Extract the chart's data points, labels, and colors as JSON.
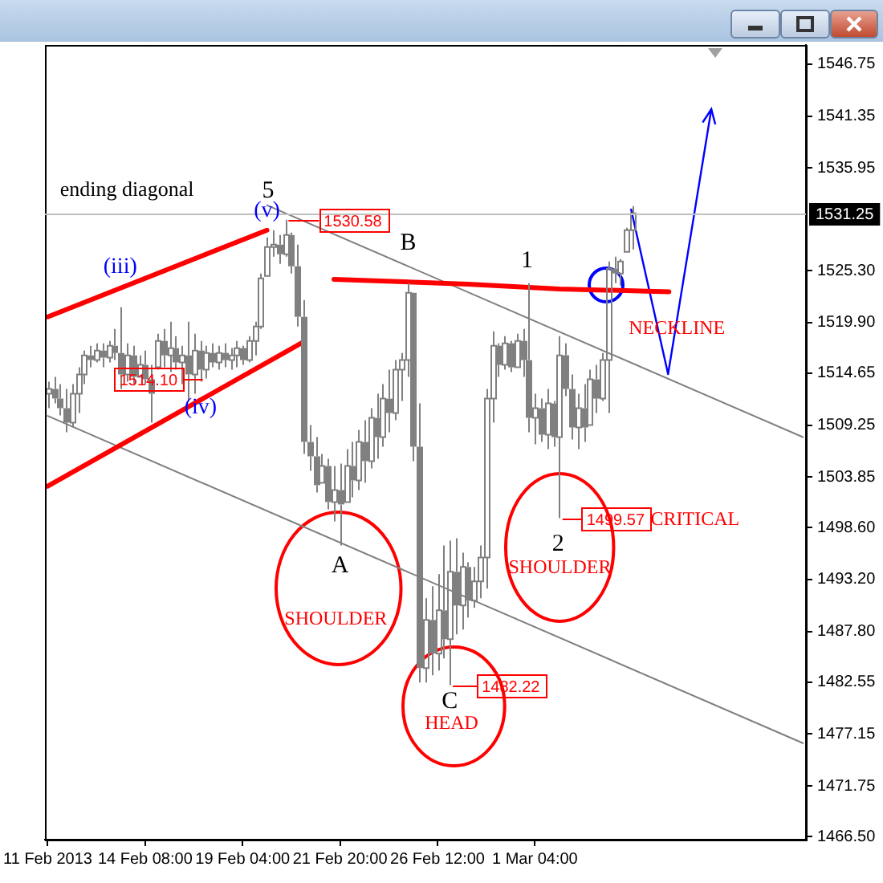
{
  "chart_data": {
    "type": "candlestick",
    "color": "#808080",
    "categories": [
      "11 Feb 2013",
      null,
      null,
      null,
      null,
      null,
      null,
      null,
      null,
      null,
      null,
      null,
      null,
      null,
      null,
      null,
      "14 Feb 08:00",
      null,
      null,
      null,
      null,
      null,
      null,
      null,
      null,
      null,
      null,
      null,
      null,
      null,
      null,
      null,
      "19 Feb 04:00",
      null,
      null,
      null,
      null,
      null,
      null,
      null,
      null,
      null,
      null,
      null,
      null,
      null,
      null,
      null,
      "21 Feb 20:00",
      null,
      null,
      null,
      null,
      null,
      null,
      null,
      null,
      null,
      null,
      null,
      null,
      null,
      null,
      null,
      "26 Feb 12:00",
      null,
      null,
      null,
      null,
      null,
      null,
      null,
      null,
      null,
      null,
      null,
      null,
      null,
      null,
      null,
      "1 Mar 04:00",
      null,
      null,
      null,
      null,
      null,
      null,
      null,
      null,
      null,
      null,
      null,
      null,
      null,
      null,
      null,
      null,
      null,
      null,
      null,
      null,
      null,
      null,
      null,
      null,
      null,
      null,
      null,
      null,
      null,
      null,
      null,
      null,
      null,
      null,
      null,
      null,
      null,
      null,
      null,
      null,
      null,
      null,
      null,
      null
    ],
    "ohlc": [
      [
        1512.5,
        1513.75,
        1511.0,
        1513.0
      ],
      [
        1513.0,
        1514.25,
        1511.5,
        1512.0
      ],
      [
        1512.0,
        1513.5,
        1510.25,
        1511.0
      ],
      [
        1511.0,
        1513.0,
        1508.5,
        1509.5
      ],
      [
        1509.5,
        1513.5,
        1509.0,
        1512.5
      ],
      [
        1512.5,
        1515.25,
        1510.5,
        1514.5
      ],
      [
        1514.5,
        1517.0,
        1513.5,
        1516.5
      ],
      [
        1516.5,
        1517.5,
        1515.25,
        1516.0
      ],
      [
        1516.0,
        1517.75,
        1515.75,
        1517.0
      ],
      [
        1517.0,
        1517.75,
        1515.25,
        1516.25
      ],
      [
        1516.25,
        1518.0,
        1515.75,
        1517.5
      ],
      [
        1517.5,
        1519.25,
        1516.0,
        1516.75
      ],
      [
        1516.75,
        1521.5,
        1513.0,
        1514.5
      ],
      [
        1514.5,
        1517.75,
        1513.75,
        1516.5
      ],
      [
        1516.5,
        1517.5,
        1513.5,
        1514.25
      ],
      [
        1514.25,
        1516.5,
        1514.25,
        1515.5
      ],
      [
        1515.5,
        1517.0,
        1513.5,
        1514.0
      ],
      [
        1514.0,
        1515.5,
        1509.5,
        1512.5
      ],
      [
        1515.25,
        1518.75,
        1515.0,
        1518.0
      ],
      [
        1518.0,
        1519.25,
        1515.25,
        1516.5
      ],
      [
        1516.5,
        1520.0,
        1514.75,
        1517.25
      ],
      [
        1517.25,
        1518.5,
        1515.0,
        1515.75
      ],
      [
        1515.75,
        1517.5,
        1513.5,
        1516.5
      ],
      [
        1516.5,
        1520.0,
        1511.75,
        1514.5
      ],
      [
        1514.5,
        1518.75,
        1512.5,
        1517.0
      ],
      [
        1517.0,
        1518.0,
        1513.75,
        1515.0
      ],
      [
        1515.0,
        1517.5,
        1514.1,
        1516.75
      ],
      [
        1516.75,
        1517.75,
        1515.25,
        1515.75
      ],
      [
        1515.75,
        1517.5,
        1515.0,
        1516.75
      ],
      [
        1516.75,
        1517.75,
        1515.25,
        1516.0
      ],
      [
        1516.0,
        1517.25,
        1515.0,
        1516.5
      ],
      [
        1516.5,
        1518.0,
        1515.25,
        1517.25
      ],
      [
        1517.25,
        1517.5,
        1515.5,
        1516.0
      ],
      [
        1516.0,
        1518.5,
        1515.75,
        1518.0
      ],
      [
        1518.0,
        1520.0,
        1516.5,
        1519.5
      ],
      [
        1519.5,
        1525.0,
        1519.25,
        1524.5
      ],
      [
        1524.75,
        1528.75,
        1524.75,
        1527.75
      ],
      [
        1527.75,
        1529.5,
        1526.75,
        1528.0
      ],
      [
        1528.0,
        1529.0,
        1526.0,
        1527.0
      ],
      [
        1527.0,
        1530.58,
        1526.75,
        1529.0
      ],
      [
        1529.0,
        1529.25,
        1525.0,
        1525.75
      ],
      [
        1525.75,
        1528.0,
        1519.5,
        1520.5
      ],
      [
        1520.5,
        1522.25,
        1506.25,
        1507.5
      ],
      [
        1507.5,
        1509.25,
        1504.5,
        1506.0
      ],
      [
        1506.0,
        1508.0,
        1502.25,
        1503.0
      ],
      [
        1503.25,
        1506.25,
        1503.25,
        1505.0
      ],
      [
        1505.0,
        1505.75,
        1500.5,
        1501.25
      ],
      [
        1501.25,
        1505.0,
        1499.25,
        1502.5
      ],
      [
        1502.5,
        1505.25,
        1496.75,
        1501.0
      ],
      [
        1501.25,
        1506.75,
        1501.25,
        1505.0
      ],
      [
        1505.0,
        1507.5,
        1501.75,
        1503.5
      ],
      [
        1503.5,
        1508.75,
        1502.5,
        1507.5
      ],
      [
        1507.5,
        1509.75,
        1503.25,
        1505.5
      ],
      [
        1505.5,
        1511.0,
        1504.75,
        1510.0
      ],
      [
        1510.0,
        1512.5,
        1505.75,
        1508.0
      ],
      [
        1508.0,
        1513.5,
        1507.0,
        1512.0
      ],
      [
        1512.0,
        1515.0,
        1508.5,
        1510.5
      ],
      [
        1510.5,
        1516.0,
        1509.75,
        1515.0
      ],
      [
        1515.0,
        1516.75,
        1511.75,
        1516.0
      ],
      [
        1516.0,
        1524.0,
        1514.25,
        1523.0
      ],
      [
        1523.0,
        1523.0,
        1505.5,
        1507.0
      ],
      [
        1507.0,
        1511.5,
        1482.5,
        1484.0
      ],
      [
        1484.0,
        1491.25,
        1482.5,
        1489.0
      ],
      [
        1489.0,
        1492.5,
        1483.25,
        1485.5
      ],
      [
        1485.5,
        1493.75,
        1483.75,
        1490.0
      ],
      [
        1490.0,
        1496.75,
        1485.0,
        1487.0
      ],
      [
        1487.0,
        1497.25,
        1482.22,
        1494.0
      ],
      [
        1494.0,
        1497.5,
        1487.5,
        1490.5
      ],
      [
        1490.5,
        1496.0,
        1488.0,
        1494.5
      ],
      [
        1494.5,
        1495.0,
        1489.25,
        1491.0
      ],
      [
        1491.0,
        1494.5,
        1490.25,
        1493.0
      ],
      [
        1493.0,
        1496.75,
        1491.25,
        1495.5
      ],
      [
        1495.5,
        1513.0,
        1492.25,
        1512.0
      ],
      [
        1512.0,
        1519.0,
        1509.5,
        1517.5
      ],
      [
        1517.5,
        1517.75,
        1514.25,
        1515.5
      ],
      [
        1515.5,
        1518.5,
        1515.0,
        1517.75
      ],
      [
        1517.75,
        1518.0,
        1514.75,
        1515.25
      ],
      [
        1515.25,
        1518.75,
        1515.25,
        1518.0
      ],
      [
        1518.0,
        1519.25,
        1514.25,
        1516.0
      ],
      [
        1516.0,
        1524.0,
        1508.5,
        1510.0
      ],
      [
        1510.0,
        1512.5,
        1507.25,
        1511.0
      ],
      [
        1511.0,
        1512.0,
        1507.5,
        1508.25
      ],
      [
        1508.25,
        1513.0,
        1506.75,
        1511.5
      ],
      [
        1511.5,
        1511.75,
        1507.0,
        1508.0
      ],
      [
        1508.0,
        1518.5,
        1499.57,
        1516.5
      ],
      [
        1516.5,
        1517.75,
        1512.25,
        1513.0
      ],
      [
        1513.0,
        1514.5,
        1507.75,
        1509.0
      ],
      [
        1509.0,
        1512.5,
        1506.75,
        1511.0
      ],
      [
        1511.0,
        1513.5,
        1507.5,
        1509.0
      ],
      [
        1509.25,
        1515.0,
        1509.25,
        1514.0
      ],
      [
        1514.0,
        1515.5,
        1510.5,
        1512.0
      ],
      [
        1512.0,
        1516.75,
        1511.75,
        1516.0
      ],
      [
        1516.0,
        1526.25,
        1510.5,
        1525.5
      ],
      [
        1525.5,
        1526.75,
        1524.0,
        1525.0
      ],
      [
        1525.0,
        1526.5,
        1523.75,
        1526.25
      ],
      [
        1527.25,
        1529.75,
        1527.25,
        1529.5
      ],
      [
        1529.5,
        1532.0,
        1527.5,
        1531.25
      ],
      null,
      null,
      null,
      null,
      null,
      null,
      null,
      null,
      null,
      null,
      null,
      null,
      null,
      null,
      null,
      null,
      null,
      null,
      null,
      null,
      null,
      null,
      null,
      null,
      null,
      null,
      null,
      null
    ],
    "series": [
      {
        "type": "line",
        "color": "#ff0000",
        "values": [
          1520.5,
          null,
          null,
          null,
          null,
          null,
          null,
          null,
          null,
          null,
          null,
          null,
          null,
          null,
          null,
          null,
          null,
          null,
          null,
          null,
          null,
          null,
          null,
          null,
          null,
          null,
          null,
          null,
          null,
          null,
          null,
          null,
          null,
          null,
          null,
          null,
          1529.5,
          null,
          null,
          null,
          null,
          null,
          null,
          null,
          null,
          null,
          null,
          null,
          null,
          null,
          null,
          null,
          null,
          null,
          null,
          null,
          null,
          null,
          null,
          null,
          null,
          null,
          null,
          null,
          null,
          null,
          null,
          null,
          null,
          null,
          null,
          null,
          null,
          null,
          null,
          null,
          null,
          null,
          null,
          null,
          null,
          null,
          null,
          null,
          null,
          null,
          null,
          null,
          null,
          null,
          null,
          null,
          null,
          null,
          null,
          null,
          null,
          null,
          null,
          null,
          null,
          null,
          null,
          null,
          null,
          null,
          null,
          null,
          null,
          null,
          null,
          null,
          null,
          null,
          null,
          null,
          null,
          null,
          null,
          null,
          null,
          null,
          null,
          null,
          null
        ]
      },
      {
        "type": "line",
        "color": "#ff0000",
        "values": [
          1502.9,
          null,
          null,
          null,
          null,
          null,
          null,
          null,
          null,
          null,
          null,
          null,
          null,
          null,
          null,
          null,
          null,
          null,
          null,
          null,
          null,
          null,
          null,
          null,
          null,
          null,
          null,
          null,
          null,
          null,
          null,
          null,
          null,
          null,
          null,
          null,
          null,
          null,
          null,
          null,
          null,
          null,
          1517.9,
          null,
          null,
          null,
          null,
          null,
          null,
          null,
          null,
          null,
          null,
          null,
          null,
          null,
          null,
          null,
          null,
          null,
          null,
          null,
          null,
          null,
          null,
          null,
          null,
          null,
          null,
          null,
          null,
          null,
          null,
          null,
          null,
          null,
          null,
          null,
          null,
          null,
          null,
          null,
          null,
          null,
          null,
          null,
          null,
          null,
          null,
          null,
          null,
          null,
          null,
          null,
          null,
          null,
          null,
          null,
          null,
          null,
          null,
          null,
          null,
          null,
          null,
          null,
          null,
          null,
          null,
          null,
          null,
          null,
          null,
          null,
          null,
          null,
          null,
          null,
          null,
          null,
          null,
          null,
          null,
          null,
          null
        ]
      },
      {
        "type": "line",
        "color": "#ff0000",
        "values": [
          null,
          null,
          null,
          null,
          null,
          null,
          null,
          null,
          null,
          null,
          null,
          null,
          null,
          null,
          null,
          null,
          null,
          null,
          null,
          null,
          null,
          null,
          null,
          null,
          null,
          null,
          null,
          null,
          null,
          null,
          null,
          null,
          null,
          null,
          null,
          null,
          null,
          null,
          null,
          null,
          null,
          null,
          null,
          null,
          null,
          null,
          null,
          1524.4,
          null,
          null,
          null,
          null,
          null,
          null,
          null,
          null,
          null,
          null,
          null,
          null,
          null,
          null,
          null,
          null,
          null,
          null,
          null,
          null,
          null,
          1523.9,
          null,
          null,
          null,
          null,
          null,
          null,
          null,
          null,
          null,
          null,
          null,
          null,
          null,
          null,
          1523.4,
          null,
          null,
          null,
          null,
          null,
          null,
          null,
          null,
          null,
          null,
          null,
          null,
          null,
          null,
          null,
          null,
          null,
          1523.1,
          null,
          null,
          null,
          null,
          null,
          null,
          null,
          null,
          null,
          null,
          null,
          null,
          null,
          null,
          null,
          null,
          null,
          null,
          null,
          null,
          null,
          null
        ]
      },
      {
        "type": "line",
        "color": "#808080",
        "values": [
          null,
          null,
          null,
          null,
          null,
          null,
          null,
          null,
          null,
          null,
          null,
          null,
          null,
          null,
          null,
          null,
          null,
          null,
          null,
          null,
          null,
          null,
          null,
          null,
          null,
          null,
          null,
          null,
          null,
          null,
          null,
          null,
          null,
          null,
          null,
          null,
          1532.1,
          null,
          null,
          null,
          null,
          null,
          null,
          null,
          null,
          null,
          null,
          null,
          null,
          null,
          null,
          null,
          null,
          null,
          null,
          null,
          null,
          null,
          null,
          null,
          null,
          null,
          null,
          null,
          null,
          null,
          null,
          null,
          null,
          null,
          null,
          null,
          null,
          null,
          null,
          null,
          null,
          null,
          null,
          null,
          null,
          null,
          null,
          null,
          null,
          null,
          null,
          null,
          null,
          null,
          null,
          null,
          null,
          null,
          null,
          null,
          null,
          null,
          null,
          null,
          null,
          null,
          null,
          null,
          null,
          null,
          null,
          null,
          null,
          null,
          null,
          null,
          null,
          null,
          null,
          null,
          null,
          null,
          null,
          null,
          null,
          null,
          null,
          null,
          1508.0
        ]
      },
      {
        "type": "line",
        "color": "#808080",
        "values": [
          1510.2,
          null,
          null,
          null,
          null,
          null,
          null,
          null,
          null,
          null,
          null,
          null,
          null,
          null,
          null,
          null,
          null,
          null,
          null,
          null,
          null,
          null,
          null,
          null,
          null,
          null,
          null,
          null,
          null,
          null,
          null,
          null,
          null,
          null,
          null,
          null,
          null,
          null,
          null,
          null,
          null,
          null,
          null,
          null,
          null,
          null,
          null,
          null,
          null,
          null,
          null,
          null,
          null,
          null,
          null,
          null,
          null,
          null,
          null,
          null,
          null,
          null,
          null,
          null,
          null,
          null,
          null,
          null,
          null,
          null,
          null,
          null,
          null,
          null,
          null,
          null,
          null,
          null,
          null,
          null,
          null,
          null,
          null,
          null,
          null,
          null,
          null,
          null,
          null,
          null,
          null,
          null,
          null,
          null,
          null,
          null,
          null,
          null,
          null,
          null,
          null,
          null,
          null,
          null,
          null,
          null,
          null,
          null,
          null,
          null,
          null,
          null,
          null,
          null,
          null,
          null,
          null,
          null,
          null,
          null,
          null,
          null,
          null,
          null,
          1476.2
        ]
      }
    ],
    "ylim": [
      1466.17,
      1548.75
    ],
    "yticks": [
      {
        "value": 1466.5,
        "label": "1466.50"
      },
      {
        "value": 1471.75,
        "label": "1471.75"
      },
      {
        "value": 1477.15,
        "label": "1477.15"
      },
      {
        "value": 1482.55,
        "label": "1482.55"
      },
      {
        "value": 1487.8,
        "label": "1487.80"
      },
      {
        "value": 1493.2,
        "label": "1493.20"
      },
      {
        "value": 1498.6,
        "label": "1498.60"
      },
      {
        "value": 1503.85,
        "label": "1503.85"
      },
      {
        "value": 1509.25,
        "label": "1509.25"
      },
      {
        "value": 1514.65,
        "label": "1514.65"
      },
      {
        "value": 1519.9,
        "label": "1519.90"
      },
      {
        "value": 1525.3,
        "label": "1525.30"
      },
      {
        "value": 1535.95,
        "label": "1535.95"
      },
      {
        "value": 1541.35,
        "label": "1541.35"
      },
      {
        "value": 1546.75,
        "label": "1546.75"
      }
    ],
    "ref_lines": [
      {
        "axis": "y",
        "value": 1531.25,
        "label": "1531.25",
        "color": "#c0c0c0"
      }
    ],
    "annotations": [
      "ending diagonal",
      {
        "text": "5",
        "y": 1530.58
      },
      {
        "text": "(v)",
        "y": 1530.58
      },
      "(iii)",
      {
        "text": "(iv)",
        "y": 1514.1
      },
      {
        "text": "B",
        "y": 1524.0
      },
      {
        "text": "1",
        "y": 1524.0
      },
      {
        "text": "A",
        "y": 1496.75
      },
      {
        "text": "2",
        "y": 1499.57
      },
      {
        "text": "C",
        "y": 1482.22
      },
      "SHOULDER",
      "SHOULDER",
      "HEAD",
      "NECKLINE",
      "CRITICAL",
      {
        "text": "1530.58",
        "y": 1530.58
      },
      {
        "text": "1514.10",
        "y": 1514.1
      },
      {
        "text": "1499.57",
        "y": 1499.57
      },
      {
        "text": "1482.22",
        "y": 1482.22
      }
    ],
    "grid": false,
    "legend": false,
    "marker": "none",
    "line_style": "solid"
  }
}
